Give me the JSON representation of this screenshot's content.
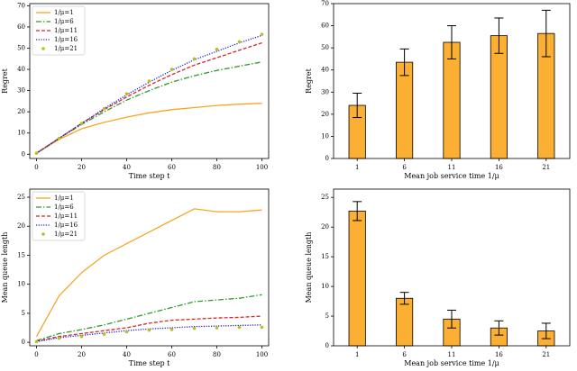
{
  "chart_data": [
    {
      "type": "line",
      "xlabel": "Time step t",
      "ylabel": "Regret",
      "legend": "upper left",
      "x": [
        0,
        10,
        20,
        30,
        40,
        50,
        60,
        70,
        80,
        90,
        100
      ],
      "xlim": [
        -3,
        103
      ],
      "xticks": [
        0,
        20,
        40,
        60,
        80,
        100
      ],
      "ylim": [
        -2,
        71
      ],
      "yticks": [
        0,
        10,
        20,
        30,
        40,
        50,
        60,
        70
      ],
      "series": [
        {
          "name": "1/μ=1",
          "color": "#f5a623",
          "style": "solid",
          "values": [
            0.5,
            7,
            12,
            15,
            17.5,
            19.5,
            21,
            22,
            23,
            23.6,
            24
          ]
        },
        {
          "name": "1/μ=6",
          "color": "#2e9a2e",
          "style": "dashdot",
          "values": [
            0.5,
            7.5,
            14,
            20,
            25.5,
            30,
            34,
            37,
            39.5,
            41.5,
            43.5
          ]
        },
        {
          "name": "1/μ=11",
          "color": "#d62728",
          "style": "dashed",
          "values": [
            0.5,
            7.5,
            14.5,
            21,
            27,
            32.5,
            37.5,
            42,
            45.5,
            49,
            52.5
          ]
        },
        {
          "name": "1/μ=16",
          "color": "#1f1fd6",
          "style": "dotted",
          "values": [
            0.5,
            7.5,
            14.5,
            21.5,
            28,
            34,
            39.5,
            44.5,
            48.5,
            52.5,
            56
          ]
        },
        {
          "name": "1/μ=21",
          "color": "#bcbd22",
          "style": "markers",
          "values": [
            0.5,
            7.5,
            14.5,
            21.5,
            28.5,
            34.5,
            40,
            45,
            49.5,
            53,
            56.5
          ]
        }
      ]
    },
    {
      "type": "bar",
      "xlabel": "Mean job service time 1/μ",
      "ylabel": "Regret",
      "color": "#fbb034",
      "categories": [
        "1",
        "6",
        "11",
        "16",
        "21"
      ],
      "values": [
        24,
        43.5,
        52.5,
        55.5,
        56.5
      ],
      "errors": [
        5.5,
        6,
        7.5,
        8,
        10.5
      ],
      "ylim": [
        0,
        70
      ],
      "yticks": [
        0,
        10,
        20,
        30,
        40,
        50,
        60,
        70
      ]
    },
    {
      "type": "line",
      "xlabel": "Time step t",
      "ylabel": "Mean queue length",
      "legend": "upper left",
      "x": [
        0,
        10,
        20,
        30,
        40,
        50,
        60,
        70,
        80,
        90,
        100
      ],
      "xlim": [
        -3,
        103
      ],
      "xticks": [
        0,
        20,
        40,
        60,
        80,
        100
      ],
      "ylim": [
        -0.6,
        26.4
      ],
      "yticks": [
        0,
        5,
        10,
        15,
        20,
        25
      ],
      "series": [
        {
          "name": "1/μ=1",
          "color": "#f5a623",
          "style": "solid",
          "values": [
            1,
            8,
            12,
            15,
            17,
            19,
            21,
            23,
            22.5,
            22.5,
            22.8
          ]
        },
        {
          "name": "1/μ=6",
          "color": "#2e9a2e",
          "style": "dashdot",
          "values": [
            0.3,
            1.5,
            2.2,
            3,
            4,
            5,
            6,
            7,
            7.3,
            7.6,
            8.2
          ]
        },
        {
          "name": "1/μ=11",
          "color": "#d62728",
          "style": "dashed",
          "values": [
            0.2,
            1,
            1.5,
            2,
            2.5,
            3.3,
            3.8,
            4,
            4.2,
            4.3,
            4.5
          ]
        },
        {
          "name": "1/μ=16",
          "color": "#1f1fd6",
          "style": "dotted",
          "values": [
            0.1,
            0.8,
            1.2,
            1.6,
            2,
            2.3,
            2.5,
            2.7,
            2.8,
            2.9,
            3
          ]
        },
        {
          "name": "1/μ=21",
          "color": "#bcbd22",
          "style": "markers",
          "values": [
            0.1,
            0.7,
            1,
            1.4,
            1.8,
            2.1,
            2.2,
            2.4,
            2.5,
            2.6,
            2.6
          ]
        }
      ]
    },
    {
      "type": "bar",
      "xlabel": "Mean job service time 1/μ",
      "ylabel": "Mean queue length",
      "color": "#fbb034",
      "categories": [
        "1",
        "6",
        "11",
        "16",
        "21"
      ],
      "values": [
        22.7,
        8,
        4.5,
        3,
        2.5
      ],
      "errors": [
        1.6,
        1,
        1.5,
        1.2,
        1.3
      ],
      "ylim": [
        0,
        26.4
      ],
      "yticks": [
        0,
        5,
        10,
        15,
        20,
        25
      ]
    }
  ]
}
